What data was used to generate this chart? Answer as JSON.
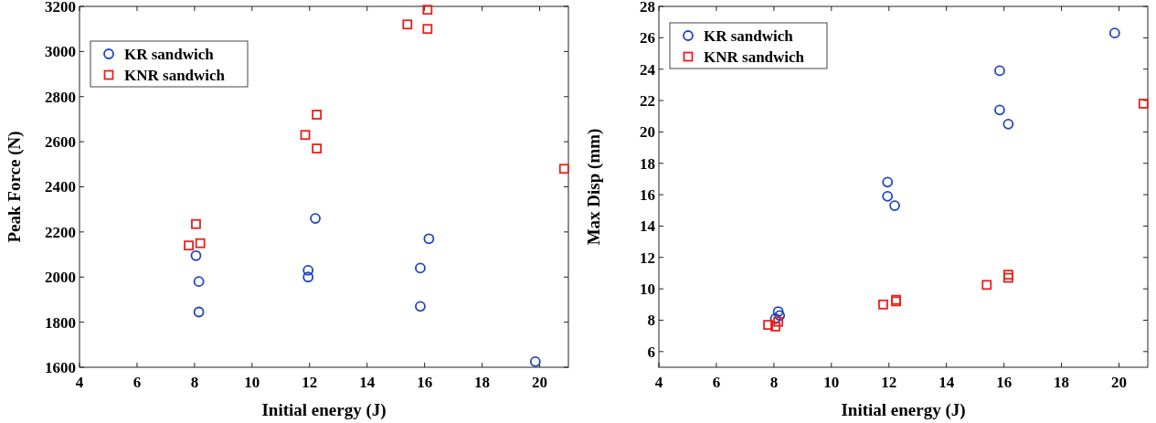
{
  "chart_data": [
    {
      "type": "scatter",
      "xlabel": "Initial energy (J)",
      "ylabel": "Peak Force (N)",
      "xlim": [
        4,
        21
      ],
      "xticks": [
        4,
        6,
        8,
        10,
        12,
        14,
        16,
        18,
        20
      ],
      "ylim": [
        1600,
        3200
      ],
      "yticks": [
        1600,
        1800,
        2000,
        2200,
        2400,
        2600,
        2800,
        3000,
        3200
      ],
      "grid": false,
      "legend": "top left",
      "series": [
        {
          "name": "KR sandwich",
          "color": "#1f45c0",
          "marker": "circle",
          "x": [
            8.05,
            8.15,
            8.15,
            11.95,
            11.95,
            12.2,
            15.85,
            15.85,
            16.15,
            19.85
          ],
          "values": [
            2095,
            1980,
            1845,
            2030,
            2000,
            2260,
            2040,
            1870,
            2170,
            1625
          ]
        },
        {
          "name": "KNR sandwich",
          "color": "#e8201a",
          "marker": "square",
          "x": [
            7.8,
            8.05,
            8.2,
            11.85,
            12.25,
            12.25,
            15.4,
            16.1,
            16.1,
            20.85
          ],
          "values": [
            2140,
            2235,
            2150,
            2630,
            2720,
            2570,
            3120,
            3185,
            3100,
            2480
          ]
        }
      ]
    },
    {
      "type": "scatter",
      "xlabel": "Initial energy (J)",
      "ylabel": "Max Disp (mm)",
      "xlim": [
        4,
        21
      ],
      "xticks": [
        4,
        6,
        8,
        10,
        12,
        14,
        16,
        18,
        20
      ],
      "ylim": [
        5,
        28
      ],
      "yticks": [
        6,
        8,
        10,
        12,
        14,
        16,
        18,
        20,
        22,
        24,
        26,
        28
      ],
      "grid": false,
      "legend": "top left",
      "series": [
        {
          "name": "KR sandwich",
          "color": "#1f45c0",
          "marker": "circle",
          "x": [
            8.05,
            8.15,
            8.2,
            11.95,
            11.95,
            12.2,
            15.85,
            15.85,
            16.15,
            19.85
          ],
          "values": [
            8.1,
            8.55,
            8.3,
            16.8,
            15.9,
            15.3,
            23.9,
            21.4,
            20.5,
            26.3
          ]
        },
        {
          "name": "KNR sandwich",
          "color": "#e8201a",
          "marker": "square",
          "x": [
            7.8,
            8.05,
            8.15,
            11.8,
            12.25,
            12.25,
            15.4,
            16.15,
            16.15,
            20.85
          ],
          "values": [
            7.7,
            7.6,
            7.9,
            9.0,
            9.3,
            9.2,
            10.25,
            10.9,
            10.7,
            21.8
          ]
        }
      ]
    }
  ]
}
